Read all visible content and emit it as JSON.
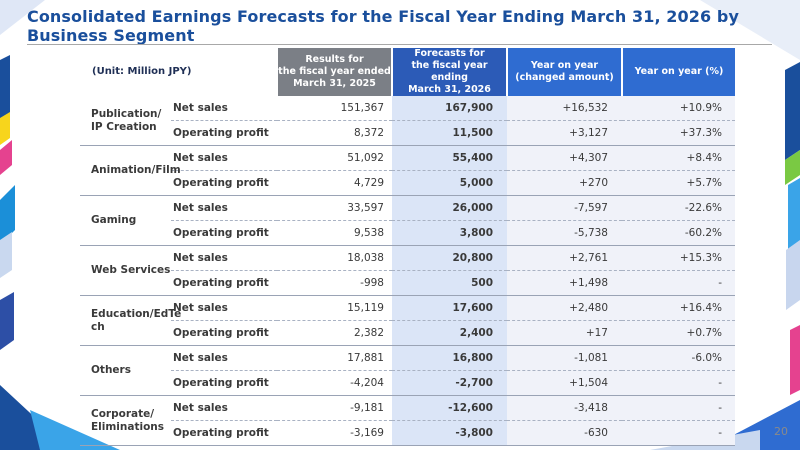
{
  "title": "Consolidated Earnings Forecasts for the Fiscal Year Ending March 31, 2026 by Business Segment",
  "page_number": "20",
  "table": {
    "unit": "(Unit: Million JPY)",
    "headers": {
      "results": [
        "Results for",
        "the fiscal year ended",
        "March 31, 2025"
      ],
      "forecast": [
        "Forecasts for",
        "the fiscal year ending",
        "March 31, 2026"
      ],
      "yoy_amount": [
        "Year on year",
        "(changed amount)"
      ],
      "yoy_pct": "Year on year (%)"
    },
    "segments": [
      {
        "name": [
          "Publication/",
          "IP Creation"
        ],
        "rows": [
          {
            "metric": "Net sales",
            "results": "151,367",
            "forecast": "167,900",
            "yoy": "+16,532",
            "pct": "+10.9%"
          },
          {
            "metric": "Operating profit",
            "results": "8,372",
            "forecast": "11,500",
            "yoy": "+3,127",
            "pct": "+37.3%"
          }
        ]
      },
      {
        "name": [
          "Animation/Film"
        ],
        "rows": [
          {
            "metric": "Net sales",
            "results": "51,092",
            "forecast": "55,400",
            "yoy": "+4,307",
            "pct": "+8.4%"
          },
          {
            "metric": "Operating profit",
            "results": "4,729",
            "forecast": "5,000",
            "yoy": "+270",
            "pct": "+5.7%"
          }
        ]
      },
      {
        "name": [
          "Gaming"
        ],
        "rows": [
          {
            "metric": "Net sales",
            "results": "33,597",
            "forecast": "26,000",
            "yoy": "-7,597",
            "pct": "-22.6%"
          },
          {
            "metric": "Operating profit",
            "results": "9,538",
            "forecast": "3,800",
            "yoy": "-5,738",
            "pct": "-60.2%"
          }
        ]
      },
      {
        "name": [
          "Web Services"
        ],
        "rows": [
          {
            "metric": "Net sales",
            "results": "18,038",
            "forecast": "20,800",
            "yoy": "+2,761",
            "pct": "+15.3%"
          },
          {
            "metric": "Operating profit",
            "results": "-998",
            "forecast": "500",
            "yoy": "+1,498",
            "pct": "-"
          }
        ]
      },
      {
        "name": [
          "Education/EdTe",
          "ch"
        ],
        "rows": [
          {
            "metric": "Net sales",
            "results": "15,119",
            "forecast": "17,600",
            "yoy": "+2,480",
            "pct": "+16.4%"
          },
          {
            "metric": "Operating profit",
            "results": "2,382",
            "forecast": "2,400",
            "yoy": "+17",
            "pct": "+0.7%"
          }
        ]
      },
      {
        "name": [
          "Others"
        ],
        "rows": [
          {
            "metric": "Net sales",
            "results": "17,881",
            "forecast": "16,800",
            "yoy": "-1,081",
            "pct": "-6.0%"
          },
          {
            "metric": "Operating profit",
            "results": "-4,204",
            "forecast": "-2,700",
            "yoy": "+1,504",
            "pct": "-"
          }
        ]
      },
      {
        "name": [
          "Corporate/",
          "Eliminations"
        ],
        "rows": [
          {
            "metric": "Net sales",
            "results": "-9,181",
            "forecast": "-12,600",
            "yoy": "-3,418",
            "pct": "-"
          },
          {
            "metric": "Operating profit",
            "results": "-3,169",
            "forecast": "-3,800",
            "yoy": "-630",
            "pct": "-"
          }
        ]
      }
    ]
  },
  "colors": {
    "title": "#1a4f9c",
    "results_header": "#7b7f86",
    "forecast_header": "#2c5bb7",
    "yoy_header": "#2f6cd1",
    "forecast_cell": "#dbe5f7",
    "yoy_cell": "#f0f2f9"
  }
}
